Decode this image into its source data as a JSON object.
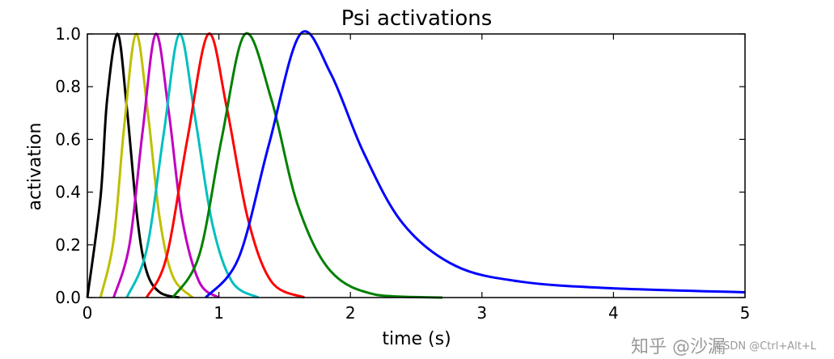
{
  "chart_data": {
    "type": "line",
    "title": "Psi activations",
    "xlabel": "time (s)",
    "ylabel": "activation",
    "xlim": [
      0,
      5
    ],
    "ylim": [
      0,
      1.0
    ],
    "x_ticks": [
      "0",
      "1",
      "2",
      "3",
      "4",
      "5"
    ],
    "y_ticks": [
      "0.0",
      "0.2",
      "0.4",
      "0.6",
      "0.8",
      "1.0"
    ],
    "grid": false,
    "legend": "none",
    "series": [
      {
        "color": "#000000",
        "peak_x": 0.23,
        "peak_y": 1.0,
        "x": [
          0,
          0.1,
          0.15,
          0.23,
          0.3,
          0.38,
          0.45,
          0.55,
          0.7
        ],
        "y": [
          0.0,
          0.38,
          0.75,
          1.0,
          0.72,
          0.3,
          0.1,
          0.02,
          0.0
        ]
      },
      {
        "color": "#bfbf00",
        "peak_x": 0.37,
        "peak_y": 1.0,
        "x": [
          0.1,
          0.2,
          0.28,
          0.37,
          0.46,
          0.55,
          0.65,
          0.8
        ],
        "y": [
          0.0,
          0.22,
          0.65,
          1.0,
          0.7,
          0.3,
          0.08,
          0.0
        ]
      },
      {
        "color": "#bf00bf",
        "peak_x": 0.52,
        "peak_y": 1.0,
        "x": [
          0.2,
          0.32,
          0.42,
          0.52,
          0.62,
          0.72,
          0.85,
          1.0
        ],
        "y": [
          0.0,
          0.2,
          0.63,
          1.0,
          0.7,
          0.3,
          0.06,
          0.0
        ]
      },
      {
        "color": "#00bfbf",
        "peak_x": 0.7,
        "peak_y": 1.0,
        "x": [
          0.3,
          0.45,
          0.58,
          0.7,
          0.82,
          0.95,
          1.1,
          1.3
        ],
        "y": [
          0.0,
          0.18,
          0.62,
          1.0,
          0.68,
          0.28,
          0.06,
          0.0
        ]
      },
      {
        "color": "#ff0000",
        "peak_x": 0.92,
        "peak_y": 1.0,
        "x": [
          0.45,
          0.6,
          0.76,
          0.92,
          1.06,
          1.22,
          1.4,
          1.65
        ],
        "y": [
          0.0,
          0.15,
          0.6,
          1.0,
          0.72,
          0.3,
          0.06,
          0.0
        ]
      },
      {
        "color": "#008000",
        "peak_x": 1.2,
        "peak_y": 1.0,
        "x": [
          0.65,
          0.85,
          1.02,
          1.2,
          1.4,
          1.6,
          1.85,
          2.2,
          2.7
        ],
        "y": [
          0.0,
          0.16,
          0.6,
          1.0,
          0.75,
          0.35,
          0.1,
          0.01,
          0.0
        ]
      },
      {
        "color": "#0000ff",
        "peak_x": 1.62,
        "peak_y": 1.0,
        "x": [
          0.9,
          1.15,
          1.38,
          1.62,
          1.85,
          2.1,
          2.4,
          2.8,
          3.3,
          4.0,
          5.0
        ],
        "y": [
          0.0,
          0.15,
          0.58,
          1.0,
          0.85,
          0.55,
          0.28,
          0.12,
          0.06,
          0.035,
          0.02
        ]
      }
    ]
  },
  "watermark": {
    "main": "知乎 @沙漏",
    "sub": "CSDN @Ctrl+Alt+L"
  }
}
